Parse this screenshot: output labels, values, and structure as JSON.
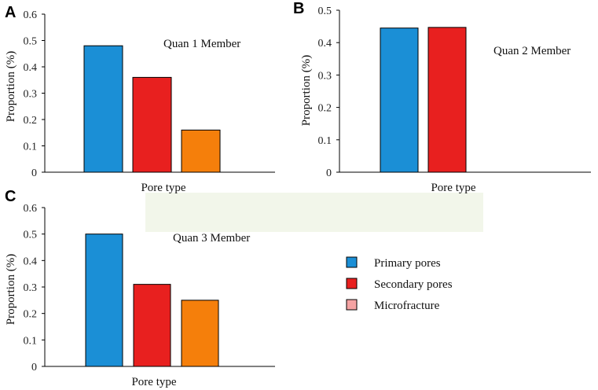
{
  "colors": {
    "primary": "#1b8fd6",
    "secondary": "#e8201f",
    "orange": "#f57f0b",
    "micro_legend": "#f5a3a3",
    "band": "#f2f6ea"
  },
  "legend": [
    {
      "label": "Primary pores",
      "color": "#1b8fd6"
    },
    {
      "label": "Secondary pores",
      "color": "#e8201f"
    },
    {
      "label": "Microfracture",
      "color": "#f5a3a3"
    }
  ],
  "chart_data": [
    {
      "panel": "A",
      "type": "bar",
      "title": "Quan 1 Member",
      "xlabel": "Pore type",
      "ylabel": "Proportion (%)",
      "ylim": [
        0,
        0.6
      ],
      "yticks": [
        0,
        0.1,
        0.2,
        0.3,
        0.4,
        0.5,
        0.6
      ],
      "categories": [
        "Primary pores",
        "Secondary pores",
        "Microfracture"
      ],
      "values": [
        0.48,
        0.36,
        0.16
      ],
      "bar_colors": [
        "#1b8fd6",
        "#e8201f",
        "#f57f0b"
      ]
    },
    {
      "panel": "B",
      "type": "bar",
      "title": "Quan 2 Member",
      "xlabel": "Pore type",
      "ylabel": "Proportion (%)",
      "ylim": [
        0,
        0.5
      ],
      "yticks": [
        0,
        0.1,
        0.2,
        0.3,
        0.4,
        0.5
      ],
      "categories": [
        "Primary pores",
        "Secondary pores"
      ],
      "values": [
        0.445,
        0.447
      ],
      "bar_colors": [
        "#1b8fd6",
        "#e8201f"
      ]
    },
    {
      "panel": "C",
      "type": "bar",
      "title": "Quan 3 Member",
      "xlabel": "Pore type",
      "ylabel": "Proportion (%)",
      "ylim": [
        0,
        0.6
      ],
      "yticks": [
        0,
        0.1,
        0.2,
        0.3,
        0.4,
        0.5,
        0.6
      ],
      "categories": [
        "Primary pores",
        "Secondary pores",
        "Microfracture"
      ],
      "values": [
        0.5,
        0.31,
        0.25
      ],
      "bar_colors": [
        "#1b8fd6",
        "#e8201f",
        "#f57f0b"
      ]
    }
  ]
}
